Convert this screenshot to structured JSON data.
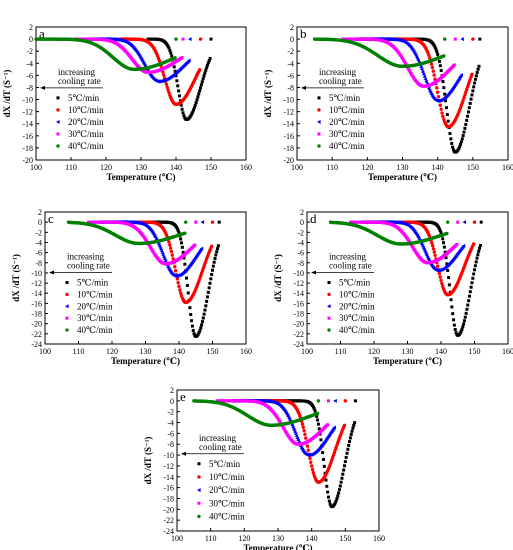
{
  "colors": {
    "5": "#000000",
    "10": "#ff0000",
    "20": "#0000ff",
    "30": "#ff00ff",
    "40": "#008000"
  },
  "chart_data": [
    {
      "type": "scatter",
      "panel": "a",
      "xlabel": "Temperature (℃)",
      "ylabel": "dX /dT (S⁻¹)",
      "xlim": [
        100,
        160
      ],
      "ylim": [
        -20,
        2
      ],
      "xticks": [
        100,
        110,
        120,
        130,
        140,
        150,
        160
      ],
      "yticks": [
        2,
        0,
        -2,
        -4,
        -6,
        -8,
        -10,
        -12,
        -14,
        -16,
        -18,
        -20
      ],
      "annotation": [
        "increasing",
        "cooling rate"
      ],
      "legend_position": "left",
      "series": [
        {
          "name": "5℃/min",
          "key": "5",
          "marker": "square",
          "start": 150,
          "end": 132,
          "peak_x": 143,
          "peak_y": -13.3,
          "wl": 2.4,
          "wr": 4.0
        },
        {
          "name": "10℃/min",
          "key": "10",
          "marker": "circle",
          "start": 147,
          "end": 124,
          "peak_x": 140,
          "peak_y": -10.8,
          "wl": 3.2,
          "wr": 5.5
        },
        {
          "name": "20℃/min",
          "key": "20",
          "marker": "triangle-left",
          "start": 144,
          "end": 115,
          "peak_x": 135,
          "peak_y": -7.0,
          "wl": 4.0,
          "wr": 7.5
        },
        {
          "name": "30℃/min",
          "key": "30",
          "marker": "square",
          "start": 142,
          "end": 111,
          "peak_x": 132,
          "peak_y": -5.5,
          "wl": 4.5,
          "wr": 9.0
        },
        {
          "name": "40℃/min",
          "key": "40",
          "marker": "circle",
          "start": 140,
          "end": 100,
          "peak_x": 128,
          "peak_y": -5.0,
          "wl": 6.0,
          "wr": 12.0
        }
      ]
    },
    {
      "type": "scatter",
      "panel": "b",
      "xlabel": "Temperature (℃)",
      "ylabel": "dX /dT (S⁻¹)",
      "xlim": [
        100,
        160
      ],
      "ylim": [
        -20,
        2
      ],
      "xticks": [
        100,
        110,
        120,
        130,
        140,
        150,
        160
      ],
      "yticks": [
        2,
        0,
        -2,
        -4,
        -6,
        -8,
        -10,
        -12,
        -14,
        -16,
        -18,
        -20
      ],
      "annotation": [
        "increasing",
        "cooling rate"
      ],
      "legend_position": "right",
      "series": [
        {
          "name": "5℃/min",
          "key": "5",
          "marker": "square",
          "start": 152,
          "end": 124,
          "peak_x": 145,
          "peak_y": -18.7,
          "wl": 2.5,
          "wr": 4.0
        },
        {
          "name": "10℃/min",
          "key": "10",
          "marker": "circle",
          "start": 150,
          "end": 118,
          "peak_x": 143,
          "peak_y": -14.5,
          "wl": 3.0,
          "wr": 5.0
        },
        {
          "name": "20℃/min",
          "key": "20",
          "marker": "triangle-left",
          "start": 147,
          "end": 116,
          "peak_x": 140,
          "peak_y": -10.2,
          "wl": 3.8,
          "wr": 6.5
        },
        {
          "name": "30℃/min",
          "key": "30",
          "marker": "square",
          "start": 145,
          "end": 113,
          "peak_x": 136,
          "peak_y": -7.8,
          "wl": 4.5,
          "wr": 8.0
        },
        {
          "name": "40℃/min",
          "key": "40",
          "marker": "circle",
          "start": 142,
          "end": 105,
          "peak_x": 130,
          "peak_y": -4.5,
          "wl": 7.0,
          "wr": 12.0
        }
      ]
    },
    {
      "type": "scatter",
      "panel": "c",
      "xlabel": "Temperature (℃)",
      "ylabel": "dX /dT (S⁻¹)",
      "xlim": [
        100,
        160
      ],
      "ylim": [
        -24,
        2
      ],
      "xticks": [
        100,
        110,
        120,
        130,
        140,
        150,
        160
      ],
      "yticks": [
        2,
        0,
        -2,
        -4,
        -6,
        -8,
        -10,
        -12,
        -14,
        -16,
        -18,
        -20,
        -22,
        -24
      ],
      "annotation": [
        "increasing",
        "cooling rate"
      ],
      "legend_position": "left",
      "series": [
        {
          "name": "5℃/min",
          "key": "5",
          "marker": "square",
          "start": 152,
          "end": 124,
          "peak_x": 145,
          "peak_y": -22.5,
          "wl": 2.3,
          "wr": 3.8
        },
        {
          "name": "10℃/min",
          "key": "10",
          "marker": "circle",
          "start": 150,
          "end": 118,
          "peak_x": 142,
          "peak_y": -15.8,
          "wl": 3.0,
          "wr": 5.0
        },
        {
          "name": "20℃/min",
          "key": "20",
          "marker": "triangle-left",
          "start": 147,
          "end": 116,
          "peak_x": 139,
          "peak_y": -10.6,
          "wl": 3.8,
          "wr": 6.5
        },
        {
          "name": "30℃/min",
          "key": "30",
          "marker": "square",
          "start": 145,
          "end": 113,
          "peak_x": 136,
          "peak_y": -8.2,
          "wl": 4.5,
          "wr": 8.0
        },
        {
          "name": "40℃/min",
          "key": "40",
          "marker": "circle",
          "start": 142,
          "end": 107,
          "peak_x": 128,
          "peak_y": -4.2,
          "wl": 7.0,
          "wr": 12.0
        }
      ]
    },
    {
      "type": "scatter",
      "panel": "d",
      "xlabel": "Temperature (℃)",
      "ylabel": "dX /dT (S⁻¹)",
      "xlim": [
        100,
        160
      ],
      "ylim": [
        -24,
        2
      ],
      "xticks": [
        100,
        110,
        120,
        130,
        140,
        150,
        160
      ],
      "yticks": [
        2,
        0,
        -2,
        -4,
        -6,
        -8,
        -10,
        -12,
        -14,
        -16,
        -18,
        -20,
        -22,
        -24
      ],
      "annotation": [
        "increasing",
        "cooling rate"
      ],
      "legend_position": "right",
      "series": [
        {
          "name": "5℃/min",
          "key": "5",
          "marker": "square",
          "start": 152,
          "end": 124,
          "peak_x": 145,
          "peak_y": -22.3,
          "wl": 2.3,
          "wr": 3.8
        },
        {
          "name": "10℃/min",
          "key": "10",
          "marker": "circle",
          "start": 150,
          "end": 118,
          "peak_x": 142,
          "peak_y": -14.3,
          "wl": 3.0,
          "wr": 5.0
        },
        {
          "name": "20℃/min",
          "key": "20",
          "marker": "triangle-left",
          "start": 147,
          "end": 116,
          "peak_x": 139,
          "peak_y": -9.5,
          "wl": 3.8,
          "wr": 6.5
        },
        {
          "name": "30℃/min",
          "key": "30",
          "marker": "square",
          "start": 145,
          "end": 113,
          "peak_x": 136,
          "peak_y": -8.0,
          "wl": 4.5,
          "wr": 8.0
        },
        {
          "name": "40℃/min",
          "key": "40",
          "marker": "circle",
          "start": 142,
          "end": 107,
          "peak_x": 128,
          "peak_y": -4.3,
          "wl": 7.0,
          "wr": 12.0
        }
      ]
    },
    {
      "type": "scatter",
      "panel": "e",
      "xlabel": "Temperature (℃)",
      "ylabel": "dX /dT (S⁻¹)",
      "xlim": [
        100,
        160
      ],
      "ylim": [
        -24,
        2
      ],
      "xticks": [
        100,
        110,
        120,
        130,
        140,
        150,
        160
      ],
      "yticks": [
        2,
        0,
        -2,
        -4,
        -6,
        -8,
        -10,
        -12,
        -14,
        -16,
        -18,
        -20,
        -22,
        -24
      ],
      "annotation": [
        "increasing",
        "cooling rate"
      ],
      "legend_position": "left",
      "series": [
        {
          "name": "5℃/min",
          "key": "5",
          "marker": "square",
          "start": 153,
          "end": 124,
          "peak_x": 146,
          "peak_y": -19.5,
          "wl": 2.3,
          "wr": 3.8
        },
        {
          "name": "10℃/min",
          "key": "10",
          "marker": "circle",
          "start": 150,
          "end": 118,
          "peak_x": 142,
          "peak_y": -15.0,
          "wl": 3.0,
          "wr": 5.0
        },
        {
          "name": "20℃/min",
          "key": "20",
          "marker": "triangle-left",
          "start": 147,
          "end": 116,
          "peak_x": 139,
          "peak_y": -10.0,
          "wl": 3.8,
          "wr": 6.5
        },
        {
          "name": "30℃/min",
          "key": "30",
          "marker": "square",
          "start": 145,
          "end": 112,
          "peak_x": 136,
          "peak_y": -8.0,
          "wl": 4.5,
          "wr": 8.0
        },
        {
          "name": "40℃/min",
          "key": "40",
          "marker": "circle",
          "start": 142,
          "end": 105,
          "peak_x": 128,
          "peak_y": -4.5,
          "wl": 7.0,
          "wr": 12.0
        }
      ]
    }
  ]
}
